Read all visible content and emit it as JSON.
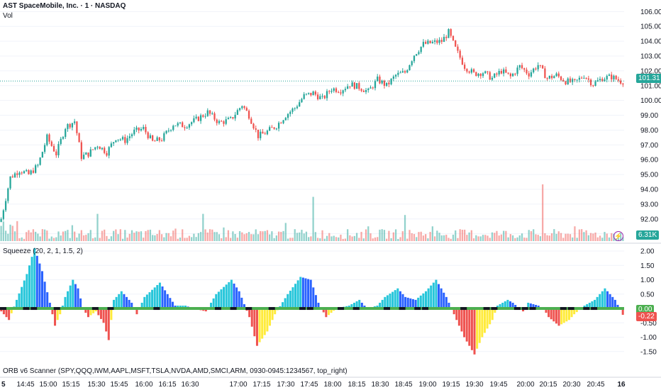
{
  "header": {
    "title": "AST SpaceMobile, Inc. · 1 · NASDAQ",
    "vol_label": "Vol",
    "squeeze_label": "Squeeze (20, 2, 1, 1.5, 2)",
    "orb_label": "ORB v6 Scanner (SPY,QQQ,IWM,AAPL,MSFT,TSLA,NVDA,AMD,SMCI,ARM, 0930-0945:1234567, top_right)"
  },
  "badges": {
    "last_price": "101.31",
    "volume": "6.31K",
    "sq_value_a": "0.00",
    "sq_value_b": "-0.22"
  },
  "colors": {
    "up": "#26a69a",
    "down": "#ef5350",
    "cyan": "#26c6da",
    "blue": "#2962ff",
    "red": "#ef5350",
    "yellow": "#ffeb3b",
    "zero_on": "#4caf50",
    "zero_off": "#131722",
    "price_line": "#26a69a",
    "grid": "#f0f3fa"
  },
  "chart_data": [
    {
      "type": "candlestick",
      "title": "AST SpaceMobile, Inc. · 1 · NASDAQ",
      "ylim": [
        90.6,
        106.4
      ],
      "y_ticks": [
        "106.00",
        "105.00",
        "104.00",
        "103.00",
        "102.00",
        "101.00",
        "100.00",
        "99.00",
        "98.00",
        "97.00",
        "96.00",
        "95.00",
        "94.00",
        "93.00",
        "92.00",
        "91.00"
      ],
      "x_ticks": [
        "14:45",
        "15:00",
        "15:15",
        "15:30",
        "15:45",
        "16:00",
        "16:15",
        "16:30",
        "17:00",
        "17:15",
        "17:30",
        "17:45",
        "18:00",
        "18:15",
        "18:30",
        "18:45",
        "19:00",
        "19:15",
        "19:30",
        "19:45",
        "20:00",
        "20:15",
        "20:30",
        "20:45"
      ],
      "x_ticks_left_partial": "5",
      "x_ticks_right_partial": "16",
      "close_path_points": [
        [
          0,
          92.0
        ],
        [
          4,
          94.8
        ],
        [
          8,
          95.3
        ],
        [
          12,
          95.0
        ],
        [
          16,
          95.6
        ],
        [
          20,
          97.5
        ],
        [
          24,
          96.4
        ],
        [
          28,
          98.2
        ],
        [
          32,
          98.6
        ],
        [
          35,
          96.2
        ],
        [
          38,
          96.4
        ],
        [
          42,
          97.0
        ],
        [
          46,
          96.5
        ],
        [
          50,
          97.5
        ],
        [
          54,
          97.3
        ],
        [
          58,
          97.9
        ],
        [
          62,
          98.1
        ],
        [
          66,
          97.2
        ],
        [
          70,
          97.4
        ],
        [
          75,
          98.4
        ],
        [
          80,
          98.3
        ],
        [
          85,
          98.7
        ],
        [
          90,
          99.2
        ],
        [
          95,
          98.5
        ],
        [
          100,
          98.7
        ],
        [
          105,
          99.7
        ],
        [
          108,
          99.0
        ],
        [
          112,
          97.6
        ],
        [
          115,
          97.8
        ],
        [
          120,
          98.3
        ],
        [
          124,
          99.0
        ],
        [
          128,
          99.5
        ],
        [
          132,
          100.3
        ],
        [
          136,
          100.5
        ],
        [
          140,
          100.1
        ],
        [
          144,
          100.8
        ],
        [
          148,
          100.7
        ],
        [
          152,
          101.1
        ],
        [
          156,
          100.9
        ],
        [
          160,
          100.6
        ],
        [
          164,
          101.4
        ],
        [
          168,
          101.0
        ],
        [
          172,
          101.7
        ],
        [
          176,
          101.9
        ],
        [
          180,
          103.1
        ],
        [
          184,
          103.8
        ],
        [
          188,
          103.9
        ],
        [
          192,
          104.0
        ],
        [
          195,
          104.6
        ],
        [
          198,
          103.5
        ],
        [
          202,
          102.3
        ],
        [
          206,
          101.8
        ],
        [
          210,
          101.9
        ],
        [
          214,
          101.5
        ],
        [
          218,
          102.0
        ],
        [
          222,
          101.6
        ],
        [
          226,
          102.3
        ],
        [
          230,
          101.8
        ],
        [
          234,
          102.4
        ],
        [
          238,
          101.5
        ],
        [
          242,
          101.7
        ],
        [
          246,
          101.3
        ],
        [
          250,
          101.2
        ],
        [
          254,
          101.7
        ],
        [
          258,
          101.1
        ],
        [
          262,
          101.5
        ],
        [
          266,
          101.6
        ],
        [
          270,
          101.3
        ]
      ],
      "last_price": 101.31
    },
    {
      "type": "bar",
      "title": "Vol",
      "note": "volume histogram, up/down colored",
      "spikes": [
        [
          31,
          "up",
          0.28
        ],
        [
          42,
          "up",
          0.48
        ],
        [
          76,
          "down",
          0.22
        ],
        [
          88,
          "up",
          0.48
        ],
        [
          97,
          "up",
          0.24
        ],
        [
          124,
          "up",
          0.32
        ],
        [
          136,
          "up",
          0.78
        ],
        [
          160,
          "up",
          0.26
        ],
        [
          176,
          "up",
          0.46
        ],
        [
          188,
          "up",
          0.26
        ],
        [
          236,
          "down",
          1.0
        ],
        [
          250,
          "down",
          0.26
        ]
      ],
      "last_value": "6.31K"
    },
    {
      "type": "bar",
      "title": "Squeeze (20, 2, 1, 1.5, 2)",
      "ylim": [
        -1.9,
        2.1
      ],
      "y_ticks": [
        "2.00",
        "1.50",
        "1.00",
        "0.50",
        "0.00",
        "-0.50",
        "-1.00",
        "-1.50"
      ],
      "momentum_points": [
        [
          0,
          -0.1
        ],
        [
          3,
          -0.4
        ],
        [
          6,
          0.3
        ],
        [
          10,
          1.2
        ],
        [
          13,
          2.1
        ],
        [
          16,
          1.3
        ],
        [
          19,
          0.2
        ],
        [
          21,
          -0.6
        ],
        [
          23,
          -0.2
        ],
        [
          25,
          0.4
        ],
        [
          28,
          1.0
        ],
        [
          30,
          0.7
        ],
        [
          32,
          0.0
        ],
        [
          34,
          -0.3
        ],
        [
          37,
          -0.1
        ],
        [
          40,
          -0.5
        ],
        [
          42,
          -1.1
        ],
        [
          44,
          0.3
        ],
        [
          47,
          0.6
        ],
        [
          51,
          0.2
        ],
        [
          53,
          -0.2
        ],
        [
          56,
          0.4
        ],
        [
          62,
          0.9
        ],
        [
          65,
          0.5
        ],
        [
          68,
          0.1
        ],
        [
          72,
          0.1
        ],
        [
          75,
          0.0
        ],
        [
          80,
          -0.1
        ],
        [
          84,
          0.5
        ],
        [
          90,
          1.0
        ],
        [
          93,
          0.6
        ],
        [
          97,
          -0.3
        ],
        [
          100,
          -1.3
        ],
        [
          104,
          -0.8
        ],
        [
          107,
          -0.2
        ],
        [
          112,
          0.5
        ],
        [
          117,
          1.1
        ],
        [
          121,
          1.0
        ],
        [
          124,
          0.2
        ],
        [
          127,
          -0.3
        ],
        [
          131,
          0.0
        ],
        [
          136,
          0.1
        ],
        [
          140,
          0.3
        ],
        [
          143,
          0.0
        ],
        [
          147,
          0.1
        ],
        [
          150,
          0.4
        ],
        [
          155,
          0.7
        ],
        [
          158,
          0.4
        ],
        [
          162,
          0.3
        ],
        [
          166,
          0.6
        ],
        [
          170,
          1.0
        ],
        [
          174,
          0.4
        ],
        [
          178,
          -0.4
        ],
        [
          181,
          -1.0
        ],
        [
          185,
          -1.6
        ],
        [
          188,
          -1.0
        ],
        [
          192,
          -0.4
        ],
        [
          194,
          0.1
        ],
        [
          198,
          0.3
        ],
        [
          200,
          0.2
        ],
        [
          204,
          -0.1
        ],
        [
          206,
          0.2
        ],
        [
          210,
          0.1
        ],
        [
          212,
          0.0
        ],
        [
          214,
          -0.3
        ],
        [
          218,
          -0.6
        ],
        [
          222,
          -0.4
        ],
        [
          224,
          -0.2
        ],
        [
          228,
          0.1
        ],
        [
          232,
          0.3
        ],
        [
          236,
          0.7
        ],
        [
          240,
          0.3
        ],
        [
          243,
          -0.22
        ]
      ],
      "last_values": [
        "0.00",
        "-0.22"
      ]
    }
  ]
}
